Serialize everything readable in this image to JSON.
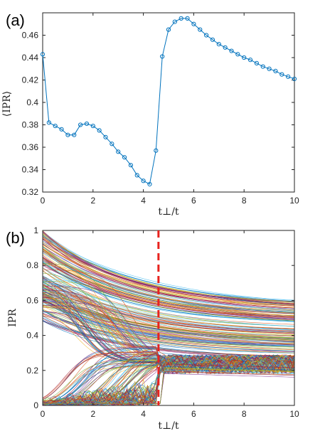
{
  "chart_data": [
    {
      "type": "line",
      "panel_label": "(a)",
      "xlabel": "t⊥/t",
      "ylabel": "⟨IPR⟩",
      "xlim": [
        0,
        10
      ],
      "ylim": [
        0.32,
        0.48
      ],
      "xticks": [
        "0",
        "2",
        "4",
        "6",
        "8",
        "10"
      ],
      "yticks": [
        "0.32",
        "0.34",
        "0.36",
        "0.38",
        "0.4",
        "0.42",
        "0.44",
        "0.46"
      ],
      "grid": false,
      "marker": "circle",
      "color": "#0072BD",
      "x": [
        0,
        0.25,
        0.5,
        0.75,
        1.0,
        1.25,
        1.5,
        1.75,
        2.0,
        2.25,
        2.5,
        2.75,
        3.0,
        3.25,
        3.5,
        3.75,
        4.0,
        4.25,
        4.5,
        4.75,
        5.0,
        5.25,
        5.5,
        5.75,
        6.0,
        6.25,
        6.5,
        6.75,
        7.0,
        7.25,
        7.5,
        7.75,
        8.0,
        8.25,
        8.5,
        8.75,
        9.0,
        9.25,
        9.5,
        9.75,
        10.0
      ],
      "y": [
        0.443,
        0.382,
        0.379,
        0.376,
        0.371,
        0.371,
        0.38,
        0.381,
        0.379,
        0.375,
        0.369,
        0.363,
        0.356,
        0.351,
        0.344,
        0.335,
        0.33,
        0.327,
        0.357,
        0.441,
        0.465,
        0.472,
        0.475,
        0.475,
        0.47,
        0.465,
        0.46,
        0.456,
        0.452,
        0.449,
        0.446,
        0.443,
        0.44,
        0.438,
        0.435,
        0.432,
        0.43,
        0.428,
        0.425,
        0.423,
        0.421
      ]
    },
    {
      "type": "line",
      "panel_label": "(b)",
      "xlabel": "t⊥/t",
      "ylabel": "IPR",
      "xlim": [
        0,
        10
      ],
      "ylim": [
        0,
        1
      ],
      "xticks": [
        "0",
        "2",
        "4",
        "6",
        "8",
        "10"
      ],
      "yticks": [
        "0",
        "0.2",
        "0.4",
        "0.6",
        "0.8",
        "1"
      ],
      "grid": false,
      "description_of_marks": "dense bundle of many colored eigenstate curves",
      "vline": {
        "x": 4.6,
        "color": "#E8231E",
        "style": "dashed"
      },
      "series_palette": [
        "#0072BD",
        "#D95319",
        "#EDB120",
        "#7E2F8E",
        "#77AC30",
        "#4DBEEE",
        "#A2142F"
      ]
    }
  ]
}
